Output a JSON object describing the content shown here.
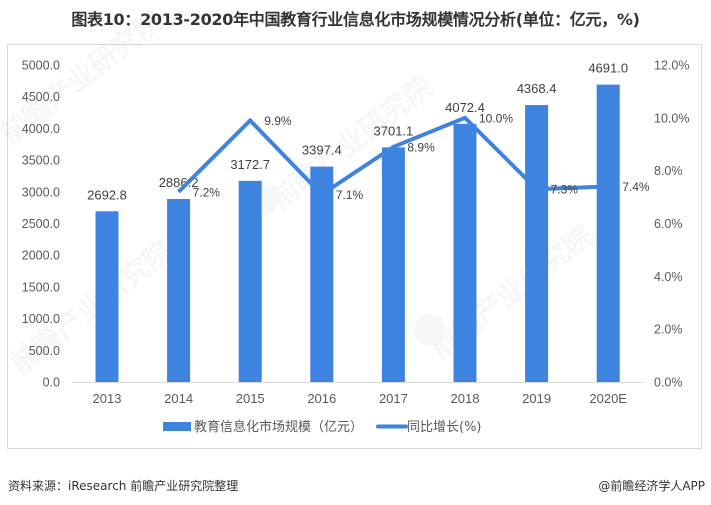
{
  "title": "图表10：2013-2020年中国教育行业信息化市场规模情况分析(单位：亿元，%)",
  "chart_data": {
    "type": "bar+line",
    "title": "图表10：2013-2020年中国教育行业信息化市场规模情况分析(单位：亿元，%)",
    "categories": [
      "2013",
      "2014",
      "2015",
      "2016",
      "2017",
      "2018",
      "2019",
      "2020E"
    ],
    "series": [
      {
        "name": "教育信息化市场规模（亿元）",
        "type": "bar",
        "axis": "left",
        "color": "#3F83E0",
        "values": [
          2692.8,
          2886.2,
          3172.7,
          3397.4,
          3701.1,
          4072.4,
          4368.4,
          4691.0
        ],
        "labels": [
          "2692.8",
          "2886.2",
          "3172.7",
          "3397.4",
          "3701.1",
          "4072.4",
          "4368.4",
          "4691.0"
        ]
      },
      {
        "name": "同比增长(%)",
        "type": "line",
        "axis": "right",
        "color": "#3F83E0",
        "x": [
          "2014",
          "2015",
          "2016",
          "2017",
          "2018",
          "2019",
          "2020E"
        ],
        "values": [
          7.2,
          9.9,
          7.1,
          8.9,
          10.0,
          7.3,
          7.4
        ],
        "labels": [
          "7.2%",
          "9.9%",
          "7.1%",
          "8.9%",
          "10.0%",
          "7.3%",
          "7.4%"
        ]
      }
    ],
    "y_left": {
      "ylim": [
        0,
        5000
      ],
      "ticks": [
        "0.0",
        "500.0",
        "1000.0",
        "1500.0",
        "2000.0",
        "2500.0",
        "3000.0",
        "3500.0",
        "4000.0",
        "4500.0",
        "5000.0"
      ]
    },
    "y_right": {
      "ylim": [
        0,
        12
      ],
      "ticks": [
        "0.0%",
        "2.0%",
        "4.0%",
        "6.0%",
        "8.0%",
        "10.0%",
        "12.0%"
      ]
    },
    "xlabel": "",
    "ylabel": "",
    "grid": false,
    "legend_position": "bottom"
  },
  "legend": {
    "bar_label": "教育信息化市场规模（亿元）",
    "line_label": "同比增长(%)"
  },
  "watermark": "前瞻产业研究院",
  "footer": {
    "source_prefix": "资料来源：",
    "source_text": "iResearch 前瞻产业研究院整理",
    "brand": "@前瞻经济学人APP"
  }
}
